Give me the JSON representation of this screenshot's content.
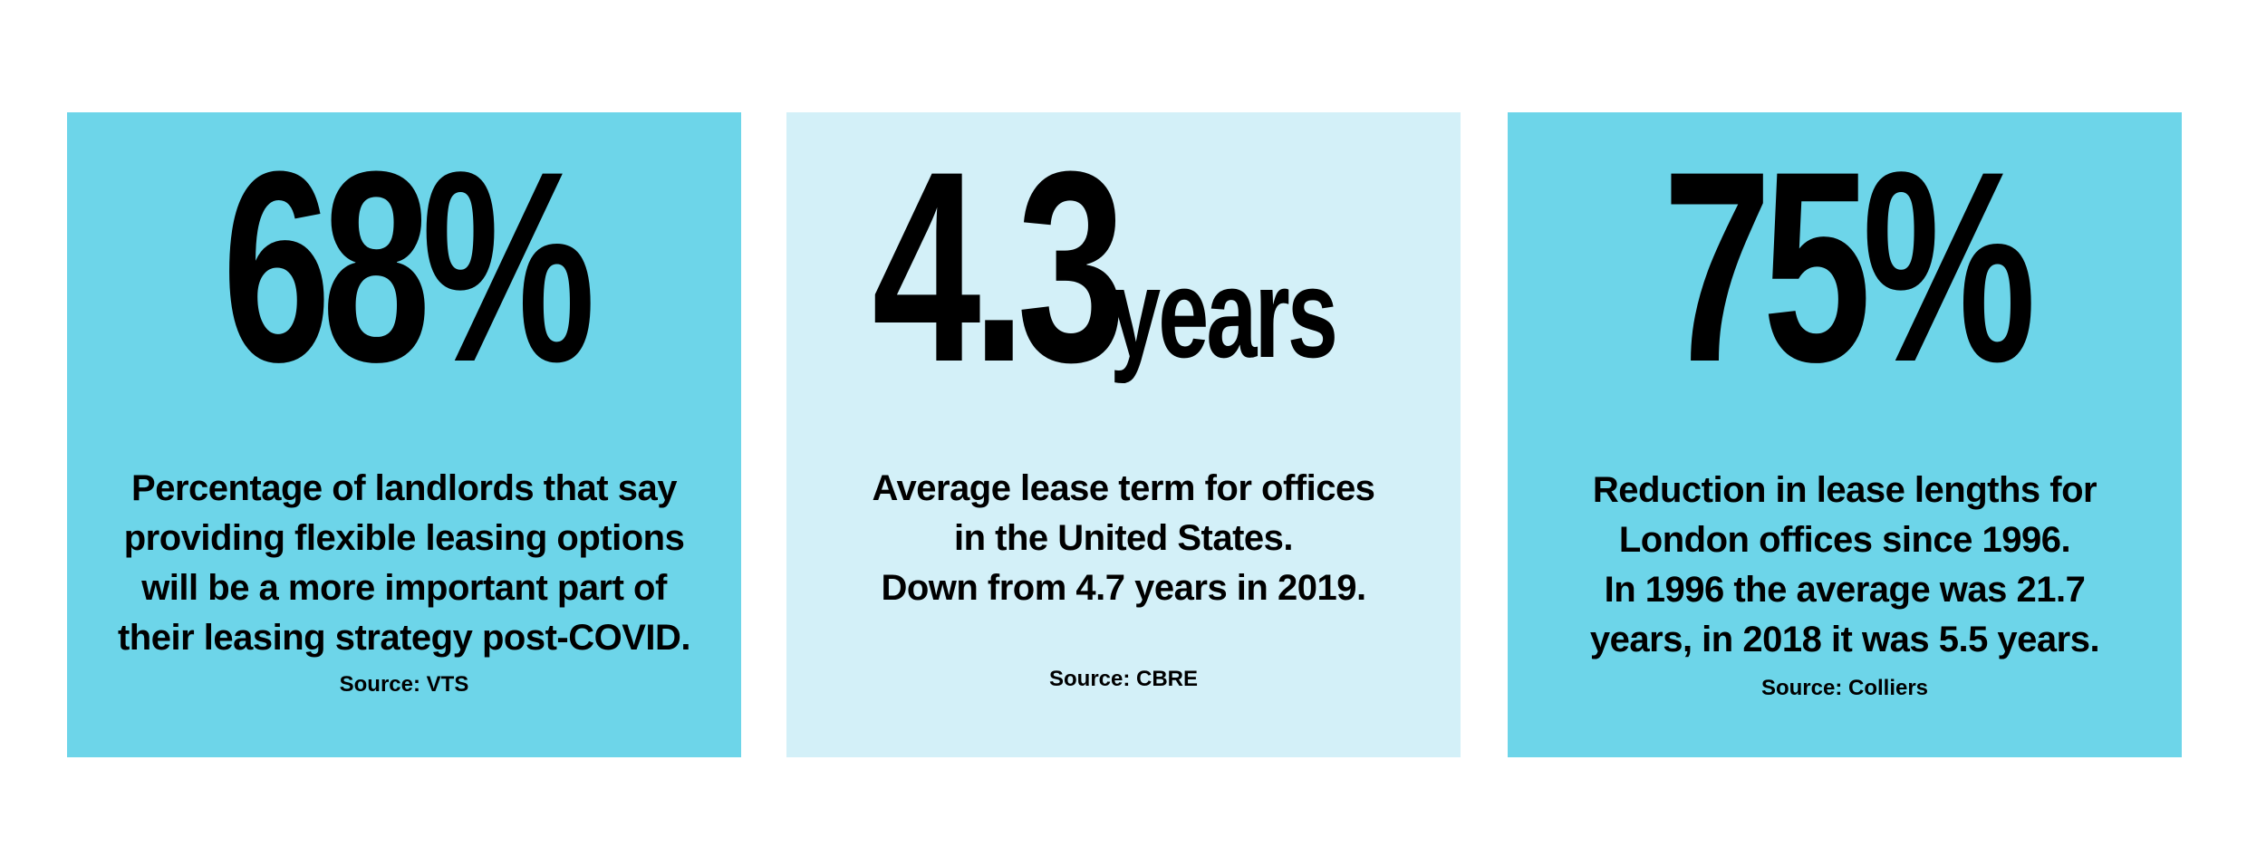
{
  "cards": [
    {
      "value": "68%",
      "unit": "",
      "description_lines": [
        "Percentage of landlords that say",
        "providing flexible leasing options",
        "will be a more important part of",
        "their leasing strategy post-COVID."
      ],
      "source": "Source: VTS",
      "background": "#6dd5e9"
    },
    {
      "value": "4.3",
      "unit": "years",
      "description_lines": [
        "Average lease term for offices",
        "in the United States.",
        "Down from 4.7 years in 2019."
      ],
      "source": "Source: CBRE",
      "background": "#d3f0f8"
    },
    {
      "value": "75%",
      "unit": "",
      "description_lines": [
        "Reduction in lease lengths for",
        "London offices since 1996.",
        "In 1996 the average was 21.7",
        "years, in 2018 it was 5.5 years."
      ],
      "source": "Source: Colliers",
      "background": "#6dd5e9"
    }
  ]
}
